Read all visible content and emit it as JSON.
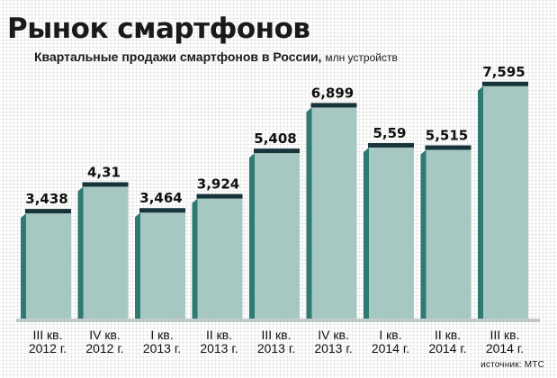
{
  "header": {
    "title": "Рынок смартфонов",
    "subtitle": "Квартальные продажи смартфонов в России,",
    "unit": "млн устройств"
  },
  "footer": {
    "source": "источник: МТС"
  },
  "colors": {
    "bar_face": "#a6c7c2",
    "bar_side": "#2f7a72",
    "bar_top": "#17343a",
    "baseline_shadow": "#1e3a3d"
  },
  "chart_data": {
    "type": "bar",
    "title": "Рынок смартфонов",
    "subtitle": "Квартальные продажи смартфонов в России, млн устройств",
    "xlabel": "",
    "ylabel": "",
    "ylim": [
      0,
      8.5
    ],
    "grid": false,
    "categories": [
      [
        "III кв.",
        "2012 г."
      ],
      [
        "IV кв.",
        "2012 г."
      ],
      [
        "I кв.",
        "2013 г."
      ],
      [
        "II кв.",
        "2013 г."
      ],
      [
        "III кв.",
        "2013 г."
      ],
      [
        "IV кв.",
        "2013 г."
      ],
      [
        "I кв.",
        "2014 г."
      ],
      [
        "II кв.",
        "2014 г."
      ],
      [
        "III кв.",
        "2014 г."
      ]
    ],
    "values": [
      3.438,
      4.31,
      3.464,
      3.924,
      5.408,
      6.899,
      5.59,
      5.515,
      7.595
    ],
    "labels": [
      "3,438",
      "4,31",
      "3,464",
      "3,924",
      "5,408",
      "6,899",
      "5,59",
      "5,515",
      "7,595"
    ]
  }
}
